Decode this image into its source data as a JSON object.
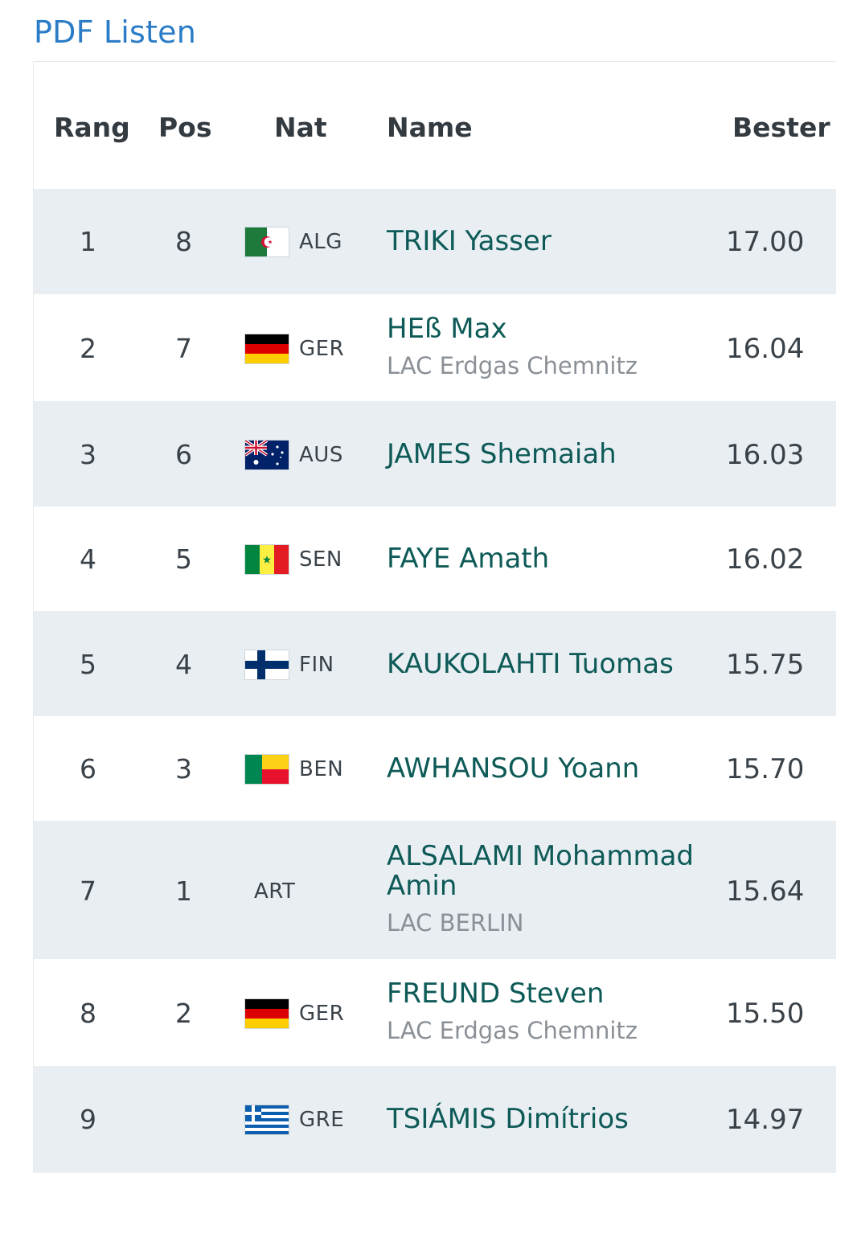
{
  "pdf_link": "PDF Listen",
  "table": {
    "headers": {
      "rang": "Rang",
      "pos": "Pos",
      "nat": "Nat",
      "name": "Name",
      "best": "Bester V"
    },
    "rows": [
      {
        "rang": "1",
        "pos": "8",
        "nat": "ALG",
        "flag": "algeria-flag-icon",
        "name": "TRIKI Yasser",
        "club": "",
        "mark": "17.00"
      },
      {
        "rang": "2",
        "pos": "7",
        "nat": "GER",
        "flag": "germany-flag-icon",
        "name": "HEß Max",
        "club": "LAC Erdgas Chemnitz",
        "mark": "16.04"
      },
      {
        "rang": "3",
        "pos": "6",
        "nat": "AUS",
        "flag": "australia-flag-icon",
        "name": "JAMES Shemaiah",
        "club": "",
        "mark": "16.03"
      },
      {
        "rang": "4",
        "pos": "5",
        "nat": "SEN",
        "flag": "senegal-flag-icon",
        "name": "FAYE Amath",
        "club": "",
        "mark": "16.02"
      },
      {
        "rang": "5",
        "pos": "4",
        "nat": "FIN",
        "flag": "finland-flag-icon",
        "name": "KAUKOLAHTI Tuomas",
        "club": "",
        "mark": "15.75"
      },
      {
        "rang": "6",
        "pos": "3",
        "nat": "BEN",
        "flag": "benin-flag-icon",
        "name": "AWHANSOU Yoann",
        "club": "",
        "mark": "15.70"
      },
      {
        "rang": "7",
        "pos": "1",
        "nat": "ART",
        "flag": "",
        "name_line1": "ALSALAMI Mohammad",
        "name_line2": "Amin",
        "club": "LAC BERLIN",
        "mark": "15.64"
      },
      {
        "rang": "8",
        "pos": "2",
        "nat": "GER",
        "flag": "germany-flag-icon",
        "name": "FREUND Steven",
        "club": "LAC Erdgas Chemnitz",
        "mark": "15.50"
      },
      {
        "rang": "9",
        "pos": "",
        "nat": "GRE",
        "flag": "greece-flag-icon",
        "name": "TSIÁMIS Dimítrios",
        "club": "",
        "mark": "14.97"
      }
    ]
  }
}
